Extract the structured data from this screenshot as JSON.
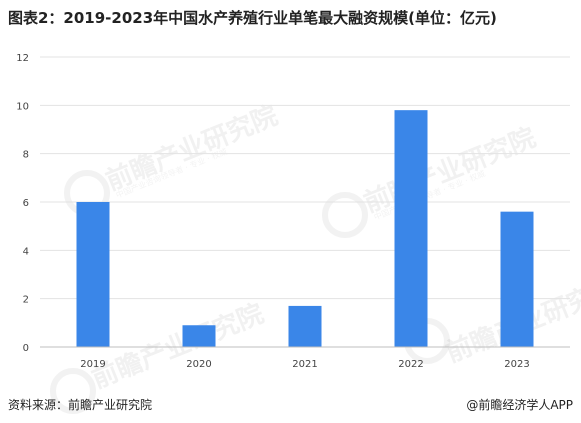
{
  "title": "图表2：2019-2023年中国水产养殖行业单笔最大融资规模(单位：亿元)",
  "source": "资料来源：前瞻产业研究院",
  "brand": "@前瞻经济学人APP",
  "watermark": {
    "text": "前瞻产业研究院",
    "sub": "中国产业咨询领导者 · 专业 · 权威"
  },
  "colors": {
    "bar": "#3A86E8",
    "grid": "#E3E3E3",
    "axis": "#BFBFBF",
    "tick": "#444444"
  },
  "chart_data": {
    "type": "bar",
    "title": "图表2：2019-2023年中国水产养殖行业单笔最大融资规模(单位：亿元)",
    "categories": [
      "2019",
      "2020",
      "2021",
      "2022",
      "2023"
    ],
    "values": [
      6.0,
      0.9,
      1.7,
      9.8,
      5.6
    ],
    "xlabel": "",
    "ylabel": "",
    "ylim": [
      0,
      12
    ],
    "yticks": [
      0,
      2,
      4,
      6,
      8,
      10,
      12
    ],
    "grid": "horizontal",
    "legend": "none"
  }
}
